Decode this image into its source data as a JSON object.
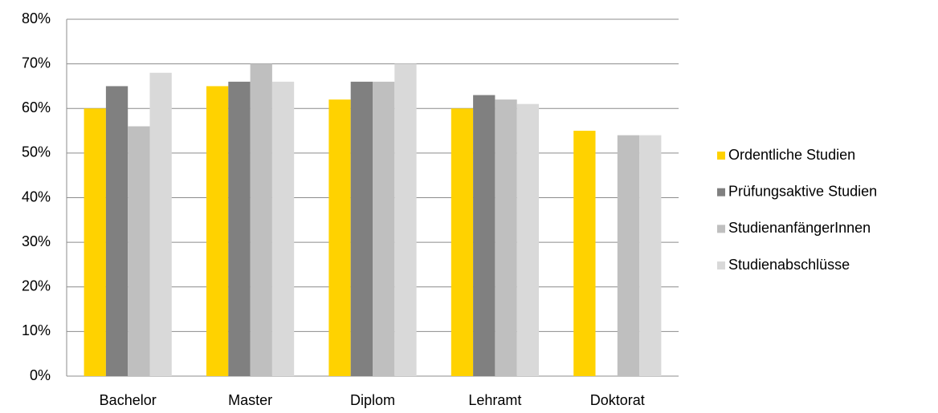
{
  "chart_data": {
    "type": "bar",
    "categories": [
      "Bachelor",
      "Master",
      "Diplom",
      "Lehramt",
      "Doktorat"
    ],
    "series": [
      {
        "name": "Ordentliche Studien",
        "color": "#FFD200",
        "values": [
          60,
          65,
          62,
          60,
          55
        ]
      },
      {
        "name": "Prüfungsaktive Studien",
        "color": "#808080",
        "values": [
          65,
          66,
          66,
          63,
          null
        ]
      },
      {
        "name": "StudienanfängerInnen",
        "color": "#BFBFBF",
        "values": [
          56,
          70,
          66,
          62,
          54
        ]
      },
      {
        "name": "Studienabschlüsse",
        "color": "#D9D9D9",
        "values": [
          68,
          66,
          70,
          61,
          54
        ]
      }
    ],
    "ylim": [
      0,
      80
    ],
    "yticks": [
      {
        "value": 0,
        "label": "0%"
      },
      {
        "value": 10,
        "label": "10%"
      },
      {
        "value": 20,
        "label": "20%"
      },
      {
        "value": 30,
        "label": "30%"
      },
      {
        "value": 40,
        "label": "40%"
      },
      {
        "value": 50,
        "label": "50%"
      },
      {
        "value": 60,
        "label": "60%"
      },
      {
        "value": 70,
        "label": "70%"
      },
      {
        "value": 80,
        "label": "80%"
      }
    ],
    "grid": true,
    "legend": "right"
  }
}
